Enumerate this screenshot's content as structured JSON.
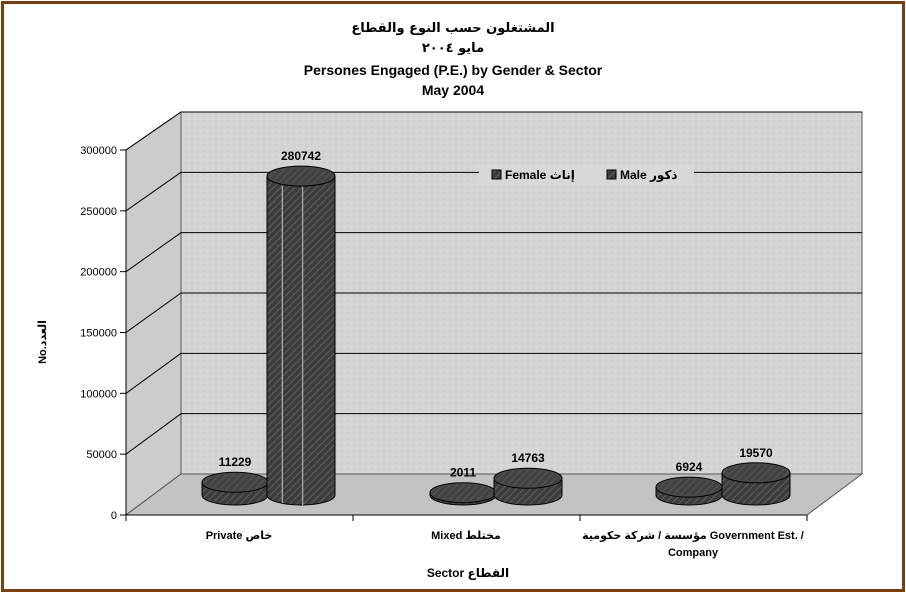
{
  "chart_data": {
    "type": "bar",
    "title_ar": "المشتغلون حسب النوع والقطاع",
    "subtitle_ar": "مايو ٢٠٠٤",
    "title": "Persones Engaged (P.E.) by Gender & Sector",
    "subtitle": "May 2004",
    "ylabel": "No.العدد",
    "xlabel": "Sector القطاع",
    "ylim": [
      0,
      300000
    ],
    "yticks": [
      "0",
      "50000",
      "100000",
      "150000",
      "200000",
      "250000",
      "300000"
    ],
    "tick_values": [
      0,
      50000,
      100000,
      150000,
      200000,
      250000,
      300000
    ],
    "categories": [
      "Private خاص",
      "Mixed مختلط",
      "مؤسسة / شركة حكومية Government Est. /"
    ],
    "categories_line2": [
      "",
      "",
      "Company"
    ],
    "series": [
      {
        "name": "Female إناث",
        "values": [
          11229,
          2011,
          6924
        ],
        "labels": [
          "11229",
          "2011",
          "6924"
        ]
      },
      {
        "name": "Male ذكور",
        "values": [
          280742,
          14763,
          19570
        ],
        "labels": [
          "280742",
          "14763",
          "19570"
        ]
      }
    ],
    "legend_position": "top-right",
    "grid": true,
    "colors": {
      "wall": "#d4d4d4",
      "floor": "#c2c2c2",
      "bar_top": "#555555",
      "bar_body": "#3a3a3a",
      "frame": "#7a3f10"
    }
  }
}
